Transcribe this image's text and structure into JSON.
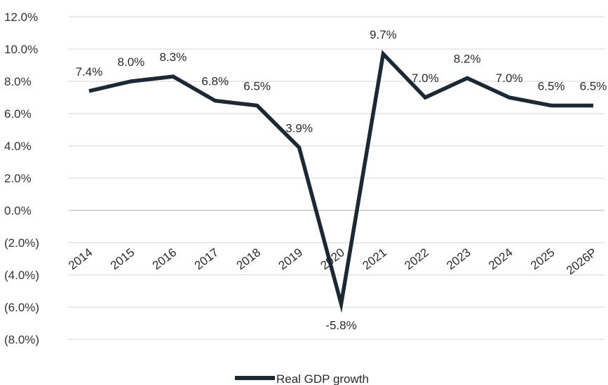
{
  "chart_data": {
    "type": "line",
    "title": "",
    "xlabel": "",
    "ylabel": "",
    "categories": [
      "2014",
      "2015",
      "2016",
      "2017",
      "2018",
      "2019",
      "2020",
      "2021",
      "2022",
      "2023",
      "2024",
      "2025",
      "2026P"
    ],
    "series": [
      {
        "name": "Real GDP growth",
        "values": [
          7.4,
          8.0,
          8.3,
          6.8,
          6.5,
          3.9,
          -5.8,
          9.7,
          7.0,
          8.2,
          7.0,
          6.5,
          6.5
        ],
        "labels": [
          "7.4%",
          "8.0%",
          "8.3%",
          "6.8%",
          "6.5%",
          "3.9%",
          "-5.8%",
          "9.7%",
          "7.0%",
          "8.2%",
          "7.0%",
          "6.5%",
          "6.5%"
        ],
        "color": "#1c2833"
      }
    ],
    "yticks": [
      "12.0%",
      "10.0%",
      "8.0%",
      "6.0%",
      "4.0%",
      "2.0%",
      "0.0%",
      "(2.0%)",
      "(4.0%)",
      "(6.0%)",
      "(8.0%)"
    ],
    "ylim": [
      -8,
      12
    ],
    "grid": true,
    "legend": "bottom-center"
  }
}
